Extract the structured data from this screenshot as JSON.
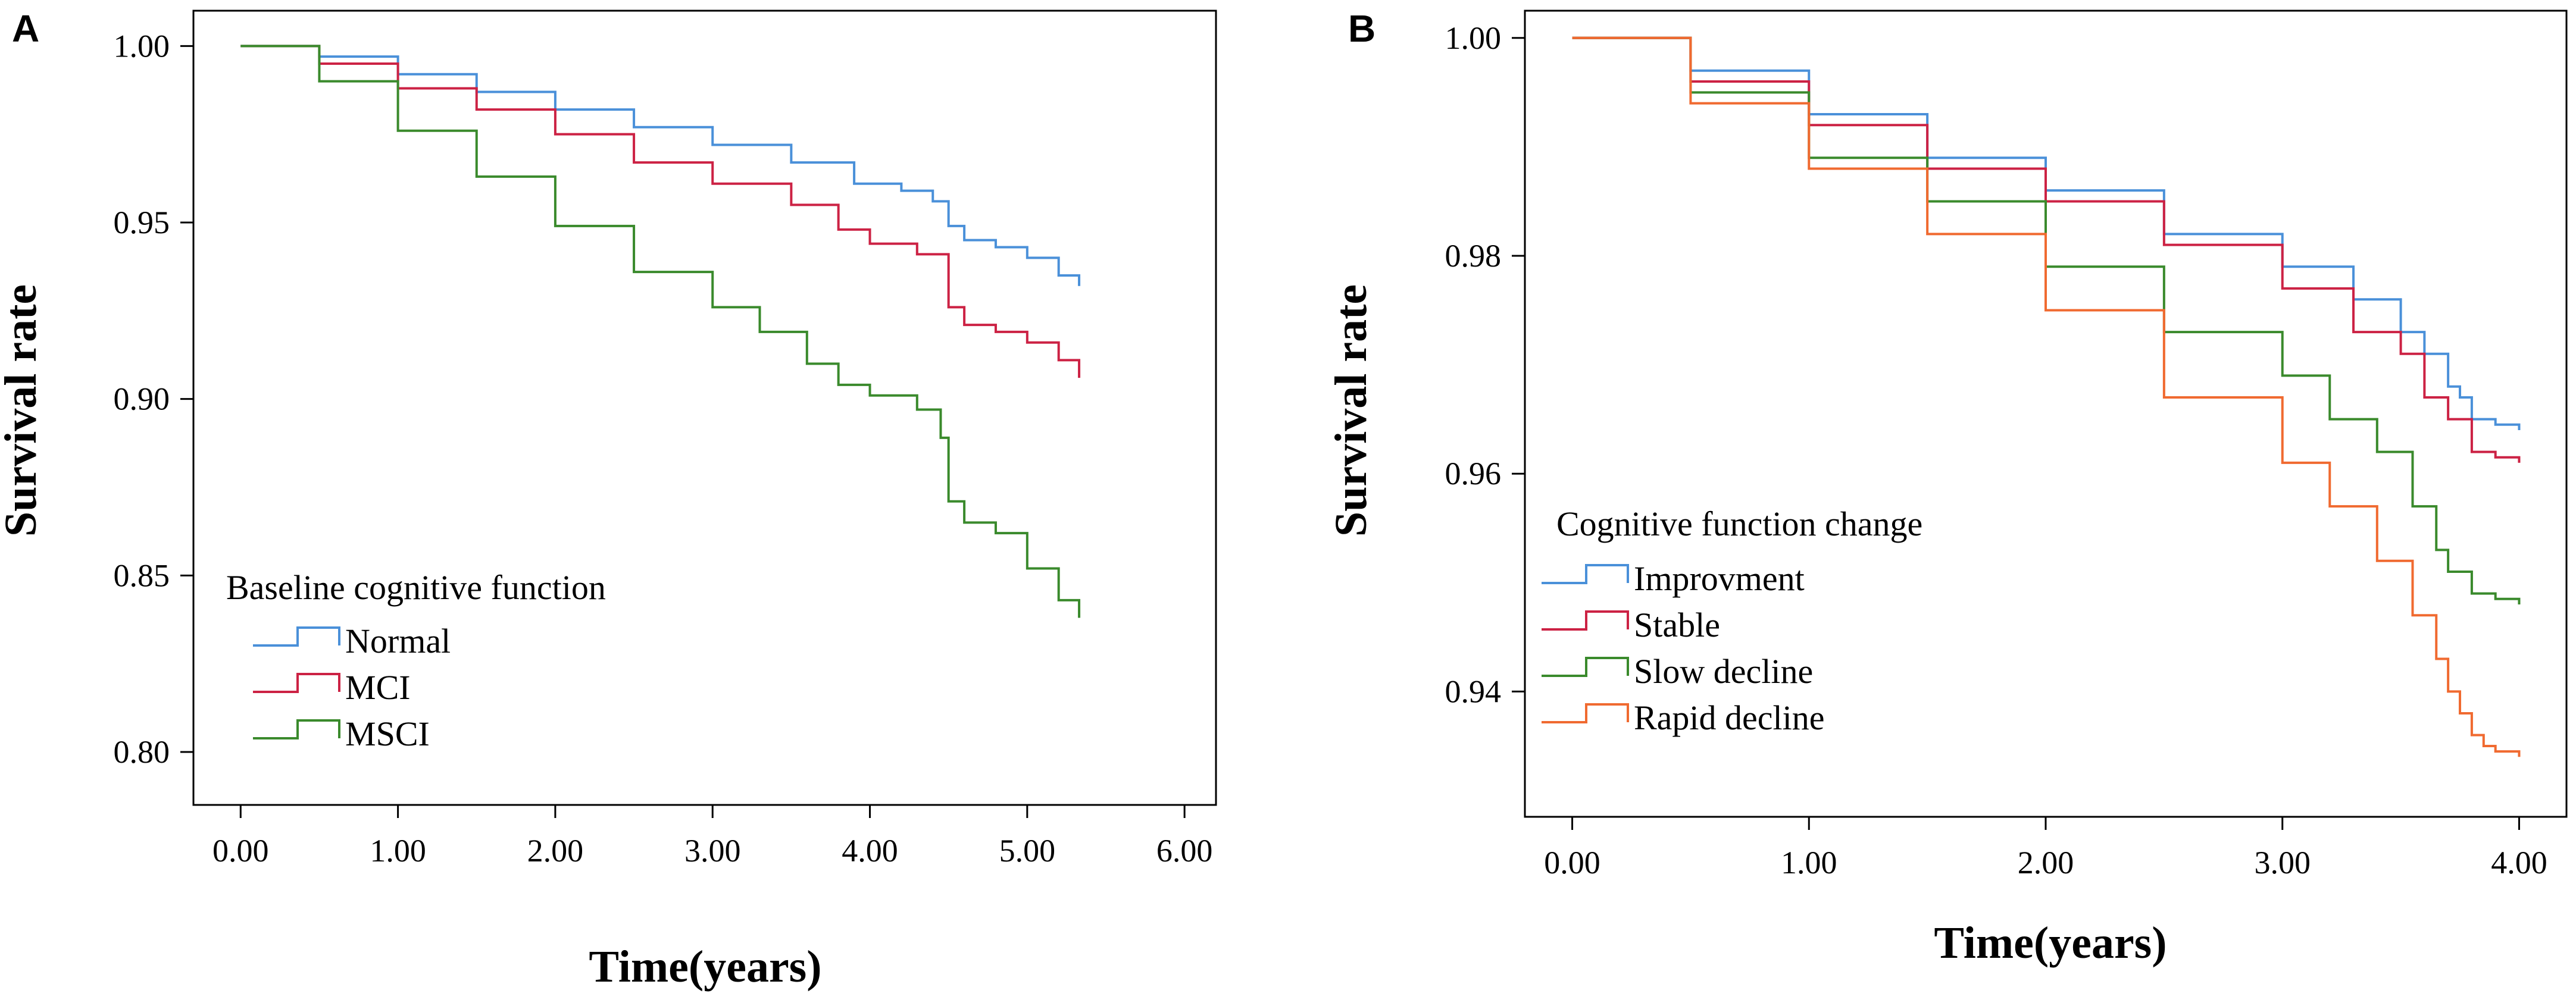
{
  "chart_data": [
    {
      "panel": "A",
      "type": "line",
      "step": true,
      "xlabel": "Time(years)",
      "ylabel": "Survival rate",
      "xlim": [
        -0.3,
        6.2
      ],
      "ylim": [
        0.785,
        1.01
      ],
      "x_ticks": [
        0,
        1,
        2,
        3,
        4,
        5,
        6
      ],
      "x_tick_labels": [
        "0.00",
        "1.00",
        "2.00",
        "3.00",
        "4.00",
        "5.00",
        "6.00"
      ],
      "y_ticks": [
        0.8,
        0.85,
        0.9,
        0.95,
        1.0
      ],
      "y_tick_labels": [
        "0.80",
        "0.85",
        "0.90",
        "0.95",
        "1.00"
      ],
      "legend_title": "Baseline cognitive function",
      "legend_position": "bottom-left",
      "series": [
        {
          "name": "Normal",
          "color": "#4a90d9",
          "x": [
            0,
            0.5,
            1.0,
            1.5,
            2.0,
            2.5,
            3.0,
            3.5,
            3.9,
            4.2,
            4.4,
            4.5,
            4.6,
            4.8,
            5.0,
            5.2,
            5.33
          ],
          "y": [
            1.0,
            0.997,
            0.992,
            0.987,
            0.982,
            0.977,
            0.972,
            0.967,
            0.961,
            0.959,
            0.956,
            0.949,
            0.945,
            0.943,
            0.94,
            0.935,
            0.932
          ]
        },
        {
          "name": "MCI",
          "color": "#cc2244",
          "x": [
            0,
            0.5,
            1.0,
            1.5,
            2.0,
            2.5,
            3.0,
            3.5,
            3.8,
            4.0,
            4.3,
            4.5,
            4.6,
            4.8,
            5.0,
            5.2,
            5.33
          ],
          "y": [
            1.0,
            0.995,
            0.988,
            0.982,
            0.975,
            0.967,
            0.961,
            0.955,
            0.948,
            0.944,
            0.941,
            0.926,
            0.921,
            0.919,
            0.916,
            0.911,
            0.906
          ]
        },
        {
          "name": "MSCI",
          "color": "#3a8a2c",
          "x": [
            0,
            0.5,
            1.0,
            1.5,
            2.0,
            2.5,
            3.0,
            3.3,
            3.6,
            3.8,
            4.0,
            4.3,
            4.45,
            4.5,
            4.6,
            4.8,
            5.0,
            5.2,
            5.33
          ],
          "y": [
            1.0,
            0.99,
            0.976,
            0.963,
            0.949,
            0.936,
            0.926,
            0.919,
            0.91,
            0.904,
            0.901,
            0.897,
            0.889,
            0.871,
            0.865,
            0.862,
            0.852,
            0.843,
            0.838
          ]
        }
      ]
    },
    {
      "panel": "B",
      "type": "line",
      "step": true,
      "xlabel": "Time(years)",
      "ylabel": "Survival rate",
      "xlim": [
        -0.2,
        4.2
      ],
      "ylim": [
        0.9285,
        1.0025
      ],
      "x_ticks": [
        0,
        1,
        2,
        3,
        4
      ],
      "x_tick_labels": [
        "0.00",
        "1.00",
        "2.00",
        "3.00",
        "4.00"
      ],
      "y_ticks": [
        0.94,
        0.96,
        0.98,
        1.0
      ],
      "y_tick_labels": [
        "0.94",
        "0.96",
        "0.98",
        "1.00"
      ],
      "legend_title": "Cognitive function change",
      "legend_position": "left",
      "series": [
        {
          "name": "Improvment",
          "color": "#4a90d9",
          "x": [
            0,
            0.5,
            1.0,
            1.5,
            2.0,
            2.5,
            3.0,
            3.3,
            3.5,
            3.6,
            3.7,
            3.75,
            3.8,
            3.9,
            4.0
          ],
          "y": [
            1.0,
            0.997,
            0.993,
            0.989,
            0.986,
            0.982,
            0.979,
            0.976,
            0.973,
            0.971,
            0.968,
            0.967,
            0.965,
            0.9645,
            0.964
          ]
        },
        {
          "name": "Stable",
          "color": "#cc2244",
          "x": [
            0,
            0.5,
            1.0,
            1.5,
            2.0,
            2.5,
            3.0,
            3.3,
            3.5,
            3.6,
            3.7,
            3.8,
            3.9,
            4.0
          ],
          "y": [
            1.0,
            0.996,
            0.992,
            0.988,
            0.985,
            0.981,
            0.977,
            0.973,
            0.971,
            0.967,
            0.965,
            0.962,
            0.9615,
            0.961
          ]
        },
        {
          "name": "Slow decline",
          "color": "#3a8a2c",
          "x": [
            0,
            0.5,
            1.0,
            1.5,
            2.0,
            2.5,
            3.0,
            3.2,
            3.4,
            3.55,
            3.65,
            3.7,
            3.8,
            3.9,
            4.0
          ],
          "y": [
            1.0,
            0.995,
            0.989,
            0.985,
            0.979,
            0.973,
            0.969,
            0.965,
            0.962,
            0.957,
            0.953,
            0.951,
            0.949,
            0.9485,
            0.948
          ]
        },
        {
          "name": "Rapid decline",
          "color": "#f06a30",
          "x": [
            0,
            0.5,
            1.0,
            1.5,
            2.0,
            2.5,
            3.0,
            3.2,
            3.4,
            3.55,
            3.65,
            3.7,
            3.75,
            3.8,
            3.85,
            3.9,
            4.0
          ],
          "y": [
            1.0,
            0.994,
            0.988,
            0.982,
            0.975,
            0.967,
            0.961,
            0.957,
            0.952,
            0.947,
            0.943,
            0.94,
            0.938,
            0.936,
            0.935,
            0.9345,
            0.934
          ]
        }
      ]
    }
  ]
}
